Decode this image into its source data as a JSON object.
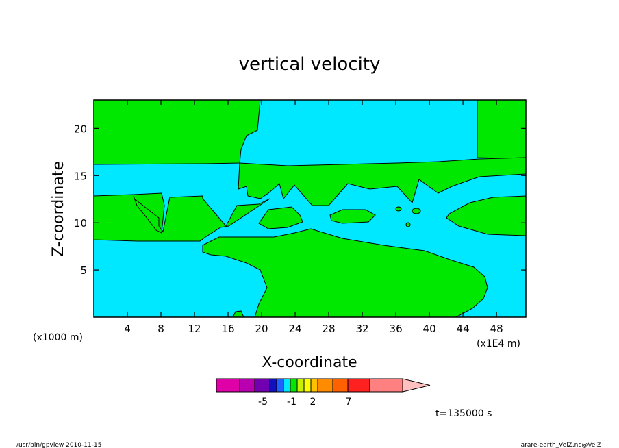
{
  "chart_data": {
    "type": "heatmap",
    "title": "vertical velocity",
    "xlabel": "X-coordinate",
    "ylabel": "Z-coordinate",
    "x_units_left": "(x1000 m)",
    "x_units_right": "(x1E4 m)",
    "x_ticks": [
      4,
      8,
      12,
      16,
      20,
      24,
      28,
      32,
      36,
      40,
      44,
      48
    ],
    "y_ticks": [
      5,
      10,
      15,
      20
    ],
    "xlim": [
      0,
      51.5
    ],
    "ylim": [
      0,
      23
    ],
    "time_label": "t=135000 s",
    "colorbar": {
      "colors": [
        "#e000a8",
        "#b800b0",
        "#7000b0",
        "#1010c0",
        "#2060ff",
        "#00e8ff",
        "#00e800",
        "#c8f000",
        "#ffff00",
        "#ffc000",
        "#ff8c00",
        "#ff6000",
        "#ff2020",
        "#ff8080"
      ],
      "extend_color": "#ffc0c0",
      "tick_labels": [
        "-5",
        "-1",
        "2",
        "7"
      ]
    },
    "field_colors": {
      "negative": "#00e8ff",
      "positive": "#00e800"
    }
  },
  "footer": {
    "left": "/usr/bin/gpview   2010-11-15",
    "right": "arare-earth_VelZ.nc@VelZ"
  }
}
